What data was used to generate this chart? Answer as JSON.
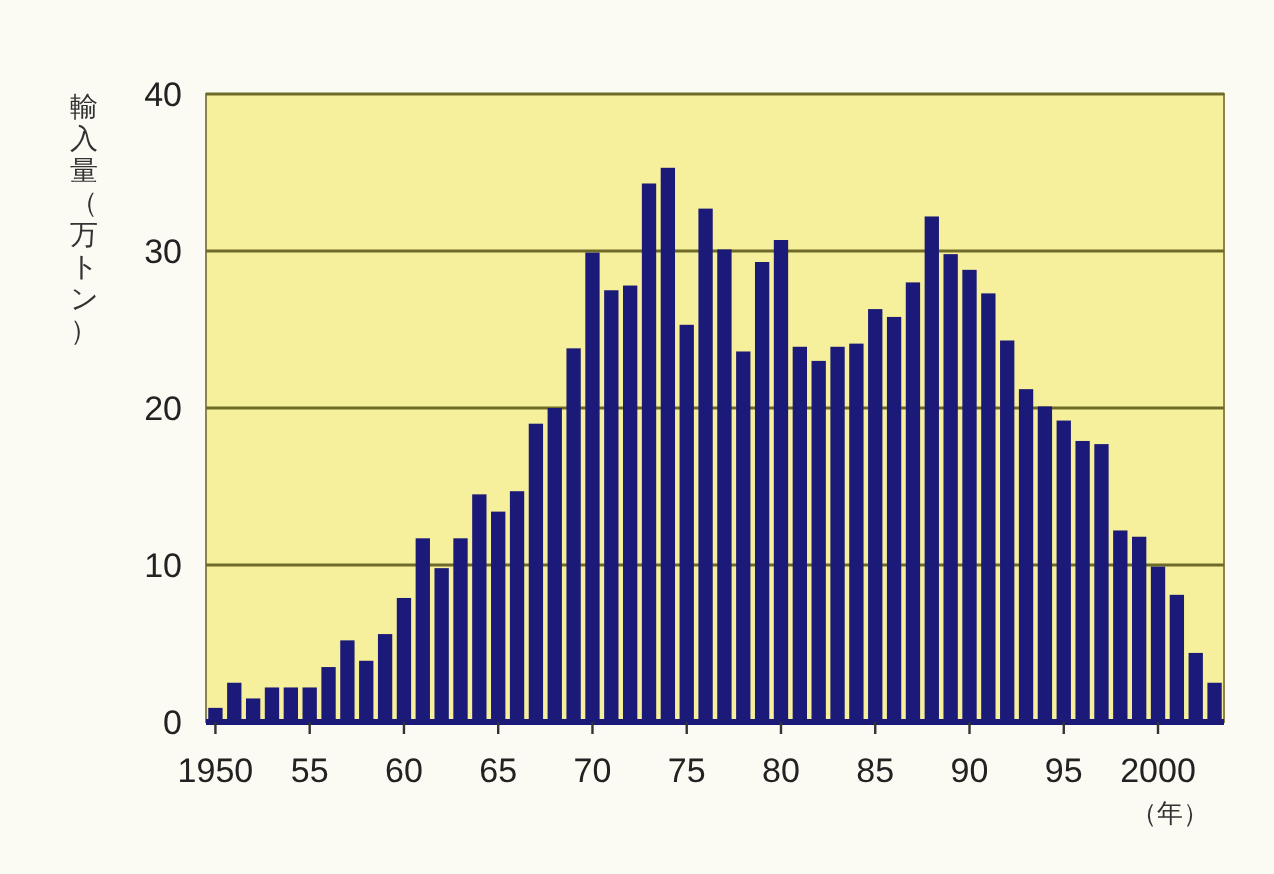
{
  "chart_data": {
    "type": "bar",
    "ylabel": "輸入量（万トン）",
    "xlabel": "（年）",
    "x": [
      1950,
      1951,
      1952,
      1953,
      1954,
      1955,
      1956,
      1957,
      1958,
      1959,
      1960,
      1961,
      1962,
      1963,
      1964,
      1965,
      1966,
      1967,
      1968,
      1969,
      1970,
      1971,
      1972,
      1973,
      1974,
      1975,
      1976,
      1977,
      1978,
      1979,
      1980,
      1981,
      1982,
      1983,
      1984,
      1985,
      1986,
      1987,
      1988,
      1989,
      1990,
      1991,
      1992,
      1993,
      1994,
      1995,
      1996,
      1997,
      1998,
      1999,
      2000,
      2001,
      2002,
      2003
    ],
    "values": [
      0.9,
      2.5,
      1.5,
      2.2,
      2.2,
      2.2,
      3.5,
      5.2,
      3.9,
      5.6,
      7.9,
      11.7,
      9.8,
      11.7,
      14.5,
      13.4,
      14.7,
      19.0,
      20.0,
      23.8,
      29.9,
      27.5,
      27.8,
      34.3,
      35.3,
      25.3,
      32.7,
      30.1,
      23.6,
      29.3,
      30.7,
      23.9,
      23.0,
      23.9,
      24.1,
      26.3,
      25.8,
      28.0,
      32.2,
      29.8,
      28.8,
      27.3,
      24.3,
      21.2,
      20.1,
      19.2,
      17.9,
      17.7,
      12.2,
      11.8,
      9.9,
      8.1,
      4.4,
      2.5
    ],
    "color": "#1c1a78",
    "xlim": [
      1949.5,
      2003.5
    ],
    "xticks": [
      {
        "value": 1950,
        "label": "1950"
      },
      {
        "value": 1955,
        "label": "55"
      },
      {
        "value": 1960,
        "label": "60"
      },
      {
        "value": 1965,
        "label": "65"
      },
      {
        "value": 1970,
        "label": "70"
      },
      {
        "value": 1975,
        "label": "75"
      },
      {
        "value": 1980,
        "label": "80"
      },
      {
        "value": 1985,
        "label": "85"
      },
      {
        "value": 1990,
        "label": "90"
      },
      {
        "value": 1995,
        "label": "95"
      },
      {
        "value": 2000,
        "label": "2000"
      }
    ],
    "ylim": [
      0,
      40
    ],
    "yticks": [
      0,
      10,
      20,
      30,
      40
    ],
    "grid": "y"
  }
}
